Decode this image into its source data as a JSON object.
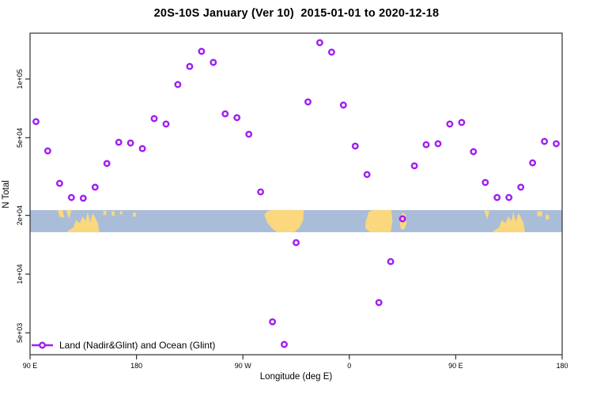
{
  "page": {
    "background": "#ffffff"
  },
  "colors": {
    "marker_purple": "#A020F0",
    "axis_line": "#303030",
    "text": "#000000",
    "ocean_blue": "#A9BDD9",
    "land_tan": "#FBD87D",
    "background": "#ffffff"
  },
  "chart_data": {
    "type": "scatter",
    "title": "20S-10S January (Ver 10)  2015-01-01 to 2020-12-18",
    "xlabel": "Longitude (deg E)",
    "ylabel": "N Total",
    "legend": {
      "label": "Land (Nadir&Glint) and Ocean (Glint)",
      "position": "bottom-left",
      "marker": "open-circle-on-line",
      "marker_color": "#A020F0"
    },
    "x_axis": {
      "start_deg": 90,
      "end_deg": 540,
      "wraps_globe": true,
      "ticks": [
        {
          "deg": 90,
          "label": "90 E"
        },
        {
          "deg": 180,
          "label": "180"
        },
        {
          "deg": 270,
          "label": "90 W"
        },
        {
          "deg": 360,
          "label": "0"
        },
        {
          "deg": 450,
          "label": "90 E"
        },
        {
          "deg": 540,
          "label": "180"
        }
      ]
    },
    "y_axis": {
      "scale": "log10",
      "ticks": [
        {
          "value": 100000,
          "label": "1e+05"
        },
        {
          "value": 50000,
          "label": "5e+04"
        },
        {
          "value": 20000,
          "label": "2e+04"
        },
        {
          "value": 10000,
          "label": "1e+04"
        },
        {
          "value": 5000,
          "label": "5e+03"
        }
      ]
    },
    "series": [
      {
        "name": "Land (Nadir&Glint) and Ocean (Glint)",
        "marker": "open-circle",
        "color": "#A020F0",
        "points": [
          [
            95,
            60500
          ],
          [
            105,
            42800
          ],
          [
            115,
            29200
          ],
          [
            125,
            24700
          ],
          [
            135,
            24500
          ],
          [
            145,
            27900
          ],
          [
            155,
            36900
          ],
          [
            165,
            47400
          ],
          [
            175,
            47000
          ],
          [
            185,
            44000
          ],
          [
            195,
            62700
          ],
          [
            205,
            58800
          ],
          [
            215,
            93700
          ],
          [
            225,
            116000
          ],
          [
            235,
            138600
          ],
          [
            245,
            121600
          ],
          [
            255,
            66300
          ],
          [
            265,
            63400
          ],
          [
            275,
            52100
          ],
          [
            285,
            26400
          ],
          [
            295,
            5700
          ],
          [
            305,
            4360
          ],
          [
            315,
            14500
          ],
          [
            325,
            76300
          ],
          [
            335,
            153600
          ],
          [
            345,
            137300
          ],
          [
            355,
            73500
          ],
          [
            365,
            45300
          ],
          [
            375,
            32400
          ],
          [
            385,
            7150
          ],
          [
            395,
            11600
          ],
          [
            405,
            19200
          ],
          [
            415,
            35900
          ],
          [
            425,
            46100
          ],
          [
            435,
            46600
          ],
          [
            445,
            58800
          ],
          [
            455,
            59900
          ],
          [
            465,
            42400
          ],
          [
            475,
            29500
          ],
          [
            485,
            24700
          ],
          [
            495,
            24700
          ],
          [
            505,
            27900
          ],
          [
            515,
            37200
          ],
          [
            525,
            47900
          ],
          [
            535,
            46600
          ]
        ]
      }
    ],
    "map_band": {
      "description": "world land/ocean strip for latitude band 20S-10S",
      "value_top": 21300,
      "value_bottom": 16400,
      "ocean_color": "#A9BDD9",
      "land_color": "#FBD87D",
      "land_polygons": [
        {
          "name": "indonesia-islands-a",
          "pts": [
            [
              113.5,
              0.0
            ],
            [
              117.5,
              0.0
            ],
            [
              119,
              0.35
            ],
            [
              115,
              0.3
            ]
          ]
        },
        {
          "name": "timor-a",
          "pts": [
            [
              120.5,
              0.0
            ],
            [
              125,
              0.0
            ],
            [
              123,
              0.4
            ]
          ]
        },
        {
          "name": "australia-a",
          "pts": [
            [
              121,
              1
            ],
            [
              148.5,
              1
            ],
            [
              147.5,
              0.62
            ],
            [
              145.5,
              0.38
            ],
            [
              143,
              0.14
            ],
            [
              140.8,
              0.55
            ],
            [
              138.8,
              0.08
            ],
            [
              137,
              0.5
            ],
            [
              134.5,
              0.28
            ],
            [
              132,
              0.6
            ],
            [
              129,
              0.45
            ],
            [
              126.5,
              0.8
            ],
            [
              123,
              0.9
            ]
          ]
        },
        {
          "name": "melanesia-speck-1",
          "pts": [
            [
              152,
              0.04
            ],
            [
              154.5,
              0.04
            ],
            [
              154.5,
              0.22
            ],
            [
              152,
              0.22
            ]
          ]
        },
        {
          "name": "melanesia-speck-2",
          "pts": [
            [
              159,
              0.06
            ],
            [
              161.5,
              0.06
            ],
            [
              161.5,
              0.25
            ],
            [
              159,
              0.25
            ]
          ]
        },
        {
          "name": "melanesia-speck-3",
          "pts": [
            [
              166,
              0.05
            ],
            [
              168,
              0.05
            ],
            [
              168,
              0.2
            ],
            [
              166,
              0.2
            ]
          ]
        },
        {
          "name": "fiji-speck",
          "pts": [
            [
              177,
              0.12
            ],
            [
              179.5,
              0.12
            ],
            [
              179.5,
              0.3
            ],
            [
              177,
              0.3
            ]
          ]
        },
        {
          "name": "south-america",
          "pts": [
            [
              288,
              0.2
            ],
            [
              291,
              0.04
            ],
            [
              296,
              0.0
            ],
            [
              321.5,
              0.0
            ],
            [
              321,
              0.45
            ],
            [
              318,
              0.78
            ],
            [
              313.5,
              1.0
            ],
            [
              299,
              1.0
            ],
            [
              294.5,
              0.82
            ],
            [
              290.5,
              0.55
            ]
          ]
        },
        {
          "name": "africa",
          "pts": [
            [
              374,
              0.5
            ],
            [
              376.5,
              0.08
            ],
            [
              380,
              0.0
            ],
            [
              395.5,
              0.0
            ],
            [
              396.5,
              0.5
            ],
            [
              395,
              1.0
            ],
            [
              377.5,
              1.0
            ],
            [
              373.5,
              0.82
            ]
          ]
        },
        {
          "name": "madagascar",
          "pts": [
            [
              402.5,
              0.5
            ],
            [
              404.5,
              0.12
            ],
            [
              407.5,
              0.18
            ],
            [
              408.5,
              0.62
            ],
            [
              406,
              0.9
            ],
            [
              403.5,
              0.85
            ]
          ]
        },
        {
          "name": "timor-b",
          "pts": [
            [
              474,
              0.0
            ],
            [
              478.5,
              0.05
            ],
            [
              476.5,
              0.42
            ]
          ]
        },
        {
          "name": "australia-b",
          "pts": [
            [
              481,
              1
            ],
            [
              508.5,
              1
            ],
            [
              507.5,
              0.62
            ],
            [
              505.5,
              0.38
            ],
            [
              503,
              0.14
            ],
            [
              500.8,
              0.55
            ],
            [
              498.8,
              0.08
            ],
            [
              497,
              0.5
            ],
            [
              494.5,
              0.28
            ],
            [
              492,
              0.6
            ],
            [
              489,
              0.45
            ],
            [
              486.5,
              0.8
            ],
            [
              483,
              0.9
            ]
          ]
        },
        {
          "name": "vanuatu-speck",
          "pts": [
            [
              519,
              0.06
            ],
            [
              523,
              0.06
            ],
            [
              523,
              0.28
            ],
            [
              519,
              0.28
            ]
          ]
        },
        {
          "name": "newcaledonia-speck",
          "pts": [
            [
              526,
              0.22
            ],
            [
              529,
              0.22
            ],
            [
              529,
              0.42
            ],
            [
              526,
              0.42
            ]
          ]
        }
      ]
    }
  }
}
